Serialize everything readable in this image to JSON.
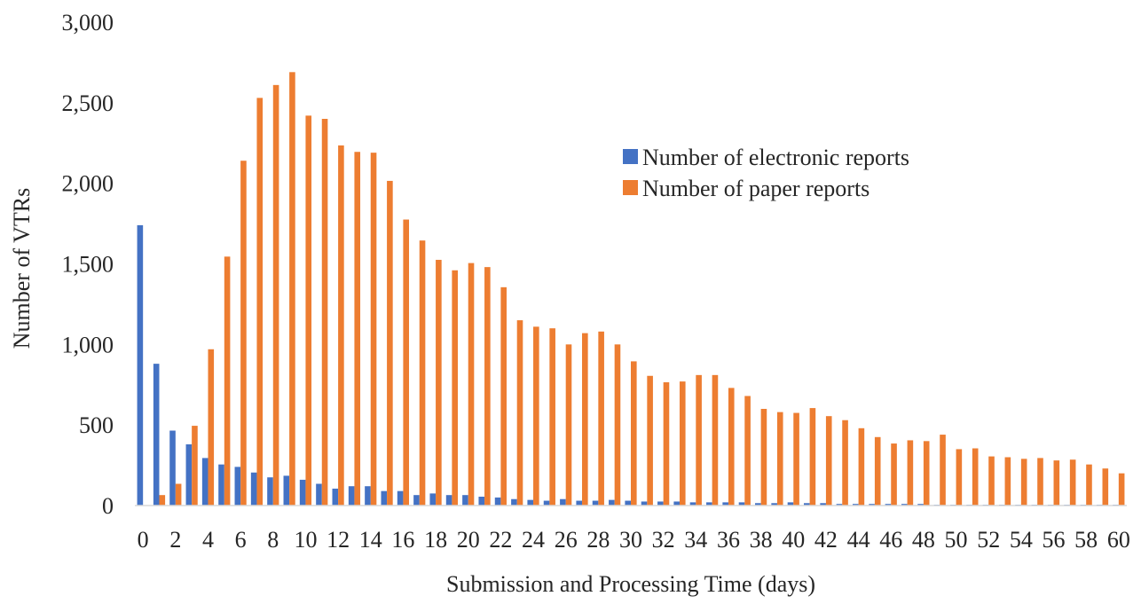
{
  "chart_data": {
    "type": "bar",
    "xlabel": "Submission and Processing Time (days)",
    "ylabel": "Number of VTRs",
    "ylim": [
      0,
      3000
    ],
    "yticks": [
      0,
      500,
      1000,
      1500,
      2000,
      2500,
      3000
    ],
    "ytick_labels": [
      "0",
      "500",
      "1,000",
      "1,500",
      "2,000",
      "2,500",
      "3,000"
    ],
    "x": [
      0,
      1,
      2,
      3,
      4,
      5,
      6,
      7,
      8,
      9,
      10,
      11,
      12,
      13,
      14,
      15,
      16,
      17,
      18,
      19,
      20,
      21,
      22,
      23,
      24,
      25,
      26,
      27,
      28,
      29,
      30,
      31,
      32,
      33,
      34,
      35,
      36,
      37,
      38,
      39,
      40,
      41,
      42,
      43,
      44,
      45,
      46,
      47,
      48,
      49,
      50,
      51,
      52,
      53,
      54,
      55,
      56,
      57,
      58,
      59,
      60
    ],
    "xtick_labels": [
      "0",
      "2",
      "4",
      "6",
      "8",
      "10",
      "12",
      "14",
      "16",
      "18",
      "20",
      "22",
      "24",
      "26",
      "28",
      "30",
      "32",
      "34",
      "36",
      "38",
      "40",
      "42",
      "44",
      "46",
      "48",
      "50",
      "52",
      "54",
      "56",
      "58",
      "60"
    ],
    "grid": false,
    "legend_position": "upper-right",
    "series": [
      {
        "name": "Number of electronic reports",
        "color": "#4472C4",
        "values": [
          1740,
          880,
          465,
          380,
          295,
          255,
          240,
          205,
          175,
          185,
          160,
          135,
          105,
          120,
          120,
          90,
          90,
          65,
          75,
          65,
          65,
          55,
          50,
          40,
          35,
          30,
          40,
          30,
          30,
          35,
          30,
          25,
          25,
          25,
          20,
          20,
          20,
          20,
          15,
          15,
          20,
          15,
          15,
          10,
          10,
          10,
          10,
          10,
          10,
          5,
          5,
          5,
          5,
          5,
          5,
          5,
          5,
          5,
          5,
          5,
          5
        ]
      },
      {
        "name": "Number of paper reports",
        "color": "#ED7D31",
        "values": [
          0,
          65,
          135,
          495,
          970,
          1545,
          2140,
          2530,
          2610,
          2690,
          2420,
          2400,
          2235,
          2195,
          2190,
          2015,
          1775,
          1645,
          1525,
          1460,
          1505,
          1480,
          1355,
          1150,
          1110,
          1100,
          1000,
          1070,
          1080,
          1000,
          895,
          805,
          765,
          770,
          810,
          810,
          730,
          680,
          600,
          580,
          575,
          605,
          555,
          530,
          480,
          425,
          385,
          405,
          400,
          440,
          350,
          355,
          305,
          300,
          290,
          295,
          280,
          285,
          255,
          230,
          200
        ]
      }
    ]
  }
}
